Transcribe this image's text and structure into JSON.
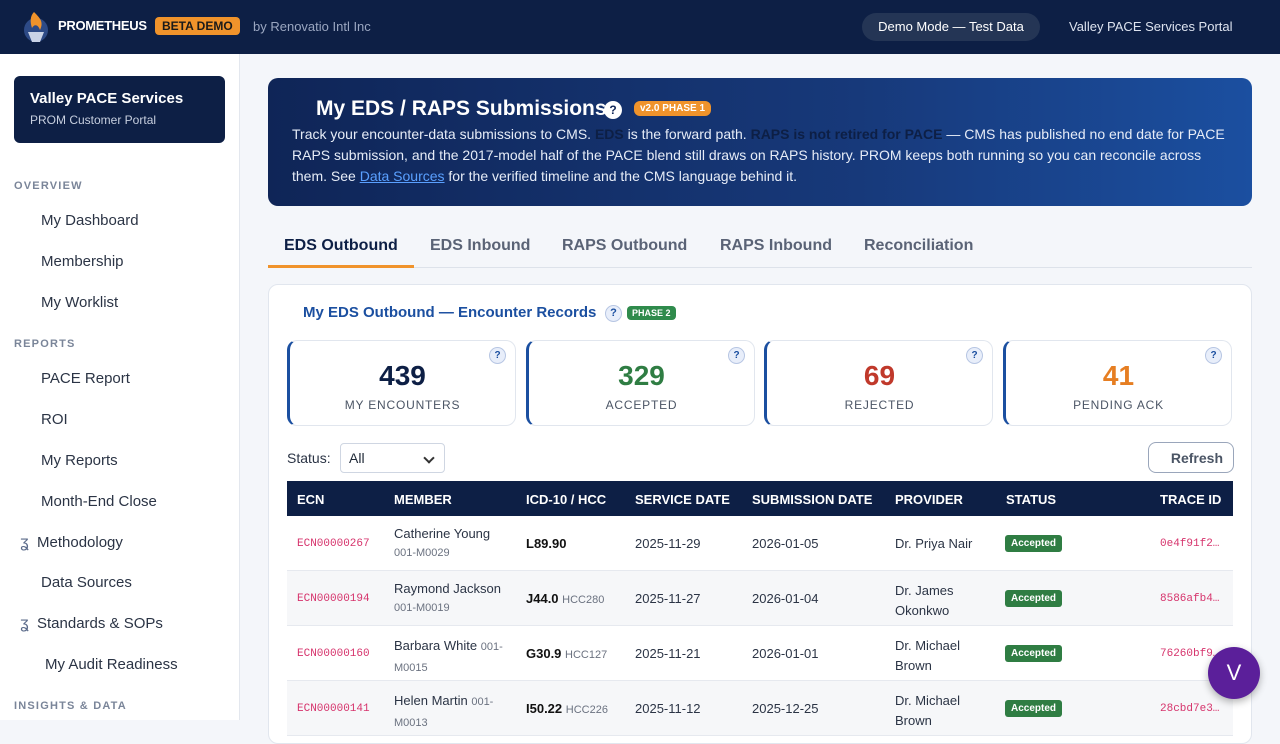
{
  "topbar": {
    "brand": "PROMETHEUS",
    "beta": "BETA DEMO",
    "by": "by Renovatio Intl Inc",
    "demo_mode": "Demo Mode — Test Data",
    "portal": "Valley PACE Services Portal"
  },
  "sidebar": {
    "org_name": "Valley PACE Services",
    "org_sub": "PROM Customer Portal",
    "sections": {
      "overview": "OVERVIEW",
      "reports": "REPORTS",
      "insights": "INSIGHTS & DATA"
    },
    "items": [
      {
        "label": "My Dashboard"
      },
      {
        "label": "Membership"
      },
      {
        "label": "My Worklist"
      },
      {
        "label": "PACE Report"
      },
      {
        "label": "ROI"
      },
      {
        "label": "My Reports"
      },
      {
        "label": "Month-End Close"
      },
      {
        "label": "Methodology"
      },
      {
        "label": "Data Sources"
      },
      {
        "label": "Standards & SOPs"
      },
      {
        "label": "My Audit Readiness"
      }
    ]
  },
  "hero": {
    "title": "My EDS / RAPS Submissions",
    "help": "?",
    "badge": "v2.0 PHASE 1",
    "text_1": "Track your encounter-data submissions to CMS. ",
    "text_eds": "EDS",
    "text_2": " is the forward path. ",
    "text_raps": "RAPS is not retired for PACE",
    "text_3": " — CMS has published no end date for PACE RAPS submission, and the 2017-model half of the PACE blend still draws on RAPS history. PROM keeps both running so you can reconcile across them. See ",
    "text_link": "Data Sources",
    "text_4": " for the verified timeline and the CMS language behind it."
  },
  "tabs": [
    {
      "label": "EDS Outbound"
    },
    {
      "label": "EDS Inbound"
    },
    {
      "label": "RAPS Outbound"
    },
    {
      "label": "RAPS Inbound"
    },
    {
      "label": "Reconciliation"
    }
  ],
  "panel": {
    "title": "My EDS Outbound — Encounter Records",
    "help": "?",
    "badge": "PHASE 2",
    "stats": [
      {
        "value": "439",
        "label": "MY ENCOUNTERS",
        "color": "#0d1f45"
      },
      {
        "value": "329",
        "label": "ACCEPTED",
        "color": "#2f7d43"
      },
      {
        "value": "69",
        "label": "REJECTED",
        "color": "#c0392b"
      },
      {
        "value": "41",
        "label": "PENDING ACK",
        "color": "#e67e22"
      }
    ],
    "status_label": "Status:",
    "status_value": "All",
    "refresh": "Refresh"
  },
  "table": {
    "headers": [
      "ECN",
      "MEMBER",
      "ICD-10 / HCC",
      "SERVICE DATE",
      "SUBMISSION DATE",
      "PROVIDER",
      "STATUS",
      "TRACE ID"
    ],
    "rows": [
      {
        "ecn": "ECN00000267",
        "member": "Catherine Young",
        "member_id": "001-M0029",
        "icd": "L89.90",
        "hcc": "",
        "service": "2025-11-29",
        "submitted": "2026-01-05",
        "provider": "Dr. Priya Nair",
        "status": "Accepted",
        "trace": "0e4f91f2…"
      },
      {
        "ecn": "ECN00000194",
        "member": "Raymond Jackson",
        "member_id": "001-M0019",
        "icd": "J44.0",
        "hcc": "HCC280",
        "service": "2025-11-27",
        "submitted": "2026-01-04",
        "provider": "Dr. James Okonkwo",
        "status": "Accepted",
        "trace": "8586afb4…"
      },
      {
        "ecn": "ECN00000160",
        "member": "Barbara White",
        "member_id": "001-M0015",
        "icd": "G30.9",
        "hcc": "HCC127",
        "service": "2025-11-21",
        "submitted": "2026-01-01",
        "provider": "Dr. Michael Brown",
        "status": "Accepted",
        "trace": "76260bf9…"
      },
      {
        "ecn": "ECN00000141",
        "member": "Helen Martin",
        "member_id": "001-M0013",
        "icd": "I50.22",
        "hcc": "HCC226",
        "service": "2025-11-12",
        "submitted": "2025-12-25",
        "provider": "Dr. Michael Brown",
        "status": "Accepted",
        "trace": "28cbd7e3…"
      }
    ]
  },
  "fab": "V"
}
